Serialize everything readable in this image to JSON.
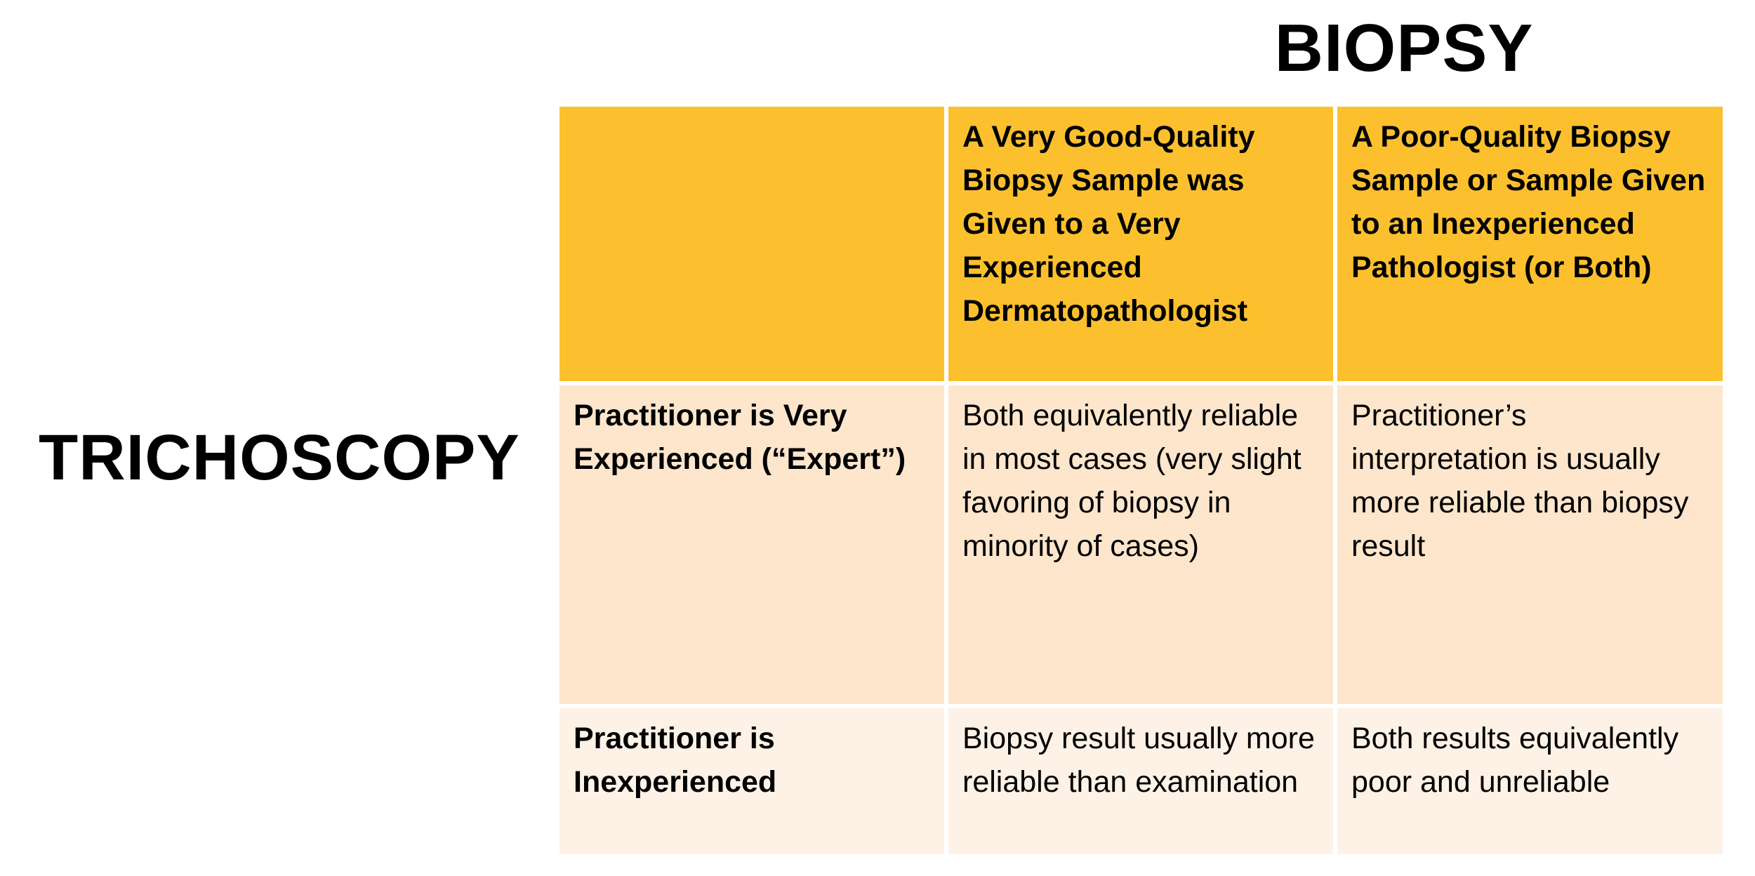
{
  "titles": {
    "column_axis": "BIOPSY",
    "row_axis": "TRICHOSCOPY"
  },
  "table": {
    "header": {
      "corner": "",
      "col1": "A Very Good-Quality Biopsy Sample was Given to  a Very Experienced Dermatopathologist",
      "col2": "A Poor-Quality Biopsy Sample or Sample Given to an Inexperienced Pathologist (or Both)"
    },
    "rows": [
      {
        "label": "Practitioner is Very Experienced (“Expert”)",
        "col1": "Both equivalently reliable in  most cases (very slight  favoring of biopsy in minority of cases)",
        "col2": "Practitioner’s interpretation is usually more reliable than biopsy result"
      },
      {
        "label": "Practitioner is Inexperienced",
        "col1": "Biopsy result usually more reliable than examination",
        "col2": "Both results equivalently poor and unreliable"
      }
    ]
  },
  "colors": {
    "header_bg": "#fcc02e",
    "row1_bg": "#fde6cc",
    "row2_bg": "#fef2e6"
  }
}
